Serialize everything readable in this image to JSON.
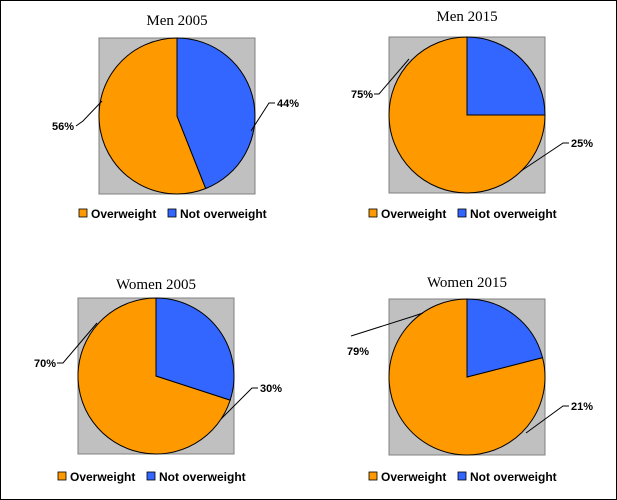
{
  "colors": {
    "overweight": "#ff9900",
    "not_overweight": "#3366ff",
    "plot_area": "#c0c0c0"
  },
  "chart_data": [
    {
      "type": "pie",
      "title": "Men 2005",
      "slices": [
        {
          "name": "Overweight",
          "value": 56,
          "label": "56%"
        },
        {
          "name": "Not overweight",
          "value": 44,
          "label": "44%"
        }
      ],
      "legend": [
        "Overweight",
        "Not overweight"
      ],
      "legend_position": "bottom"
    },
    {
      "type": "pie",
      "title": "Men 2015",
      "slices": [
        {
          "name": "Overweight",
          "value": 75,
          "label": "75%"
        },
        {
          "name": "Not overweight",
          "value": 25,
          "label": "25%"
        }
      ],
      "legend": [
        "Overweight",
        "Not overweight"
      ],
      "legend_position": "bottom"
    },
    {
      "type": "pie",
      "title": "Women 2005",
      "slices": [
        {
          "name": "Overweight",
          "value": 70,
          "label": "70%"
        },
        {
          "name": "Not overweight",
          "value": 30,
          "label": "30%"
        }
      ],
      "legend": [
        "Overweight",
        "Not overweight"
      ],
      "legend_position": "bottom"
    },
    {
      "type": "pie",
      "title": "Women 2015",
      "slices": [
        {
          "name": "Overweight",
          "value": 79,
          "label": "79%"
        },
        {
          "name": "Not overweight",
          "value": 21,
          "label": "21%"
        }
      ],
      "legend": [
        "Overweight",
        "Not overweight"
      ],
      "legend_position": "bottom"
    }
  ]
}
